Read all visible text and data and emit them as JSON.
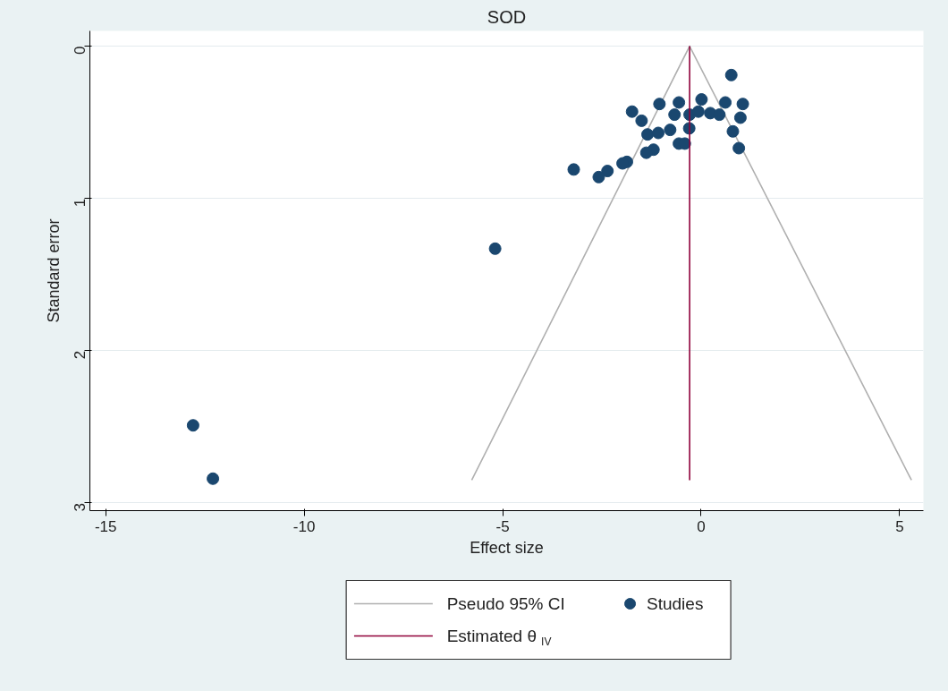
{
  "chart_data": {
    "type": "scatter",
    "title": "SOD",
    "xlabel": "Effect size",
    "ylabel": "Standard error",
    "xlim": [
      -15.4,
      5.6
    ],
    "ylim": [
      3.05,
      -0.1
    ],
    "xticks": [
      -15,
      -10,
      -5,
      0,
      5
    ],
    "yticks": [
      0,
      1,
      2,
      3
    ],
    "grid": "y",
    "legend": "bottom",
    "series": [
      {
        "name": "Pseudo 95% CI",
        "type": "line",
        "color": "#b0b0b0",
        "line_style": "solid",
        "x": [
          -5.78,
          -0.29,
          5.3
        ],
        "values": [
          2.85,
          0,
          2.85
        ]
      },
      {
        "name": "Studies",
        "marker": "circle",
        "color": "#1a476f",
        "x": [
          0.76,
          -1.74,
          -1.5,
          -1.05,
          -0.56,
          -0.67,
          -0.78,
          -1.35,
          -1.08,
          -0.56,
          -0.41,
          -0.29,
          -0.3,
          0.01,
          -0.07,
          0.23,
          0.46,
          0.61,
          1.05,
          0.99,
          0.8,
          0.95,
          -1.2,
          -1.38,
          -1.87,
          -1.98,
          -2.36,
          -2.58,
          -3.21,
          -5.19,
          -12.8,
          -12.3
        ],
        "values": [
          0.19,
          0.43,
          0.49,
          0.38,
          0.37,
          0.45,
          0.55,
          0.58,
          0.57,
          0.64,
          0.64,
          0.45,
          0.54,
          0.35,
          0.43,
          0.44,
          0.45,
          0.37,
          0.38,
          0.47,
          0.56,
          0.67,
          0.68,
          0.7,
          0.76,
          0.77,
          0.82,
          0.86,
          0.81,
          1.33,
          2.49,
          2.84
        ]
      },
      {
        "name": "Estimated θ$_{IV}$",
        "type": "line",
        "color": "#90003a",
        "line_style": "solid",
        "x": [
          -0.29,
          -0.29
        ],
        "values": [
          0,
          2.85
        ]
      }
    ]
  }
}
